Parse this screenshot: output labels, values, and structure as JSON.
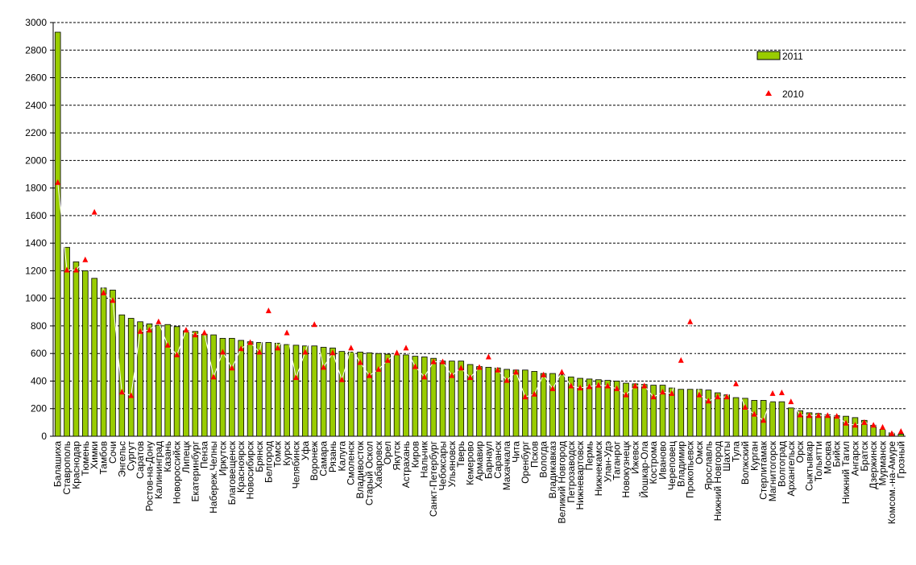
{
  "colors": {
    "bar_fill": "#99cc00",
    "bar_stroke": "#000000",
    "marker": "#ff0000",
    "line": "#ffffff",
    "grid": "#000000"
  },
  "chart_data": {
    "type": "bar",
    "title": "",
    "xlabel": "",
    "ylabel": "",
    "ylim": [
      0,
      3000
    ],
    "yticks": [
      0,
      200,
      400,
      600,
      800,
      1000,
      1200,
      1400,
      1600,
      1800,
      2000,
      2200,
      2400,
      2600,
      2800,
      3000
    ],
    "grid": "horizontal dashed",
    "legend_placement": "top-right",
    "categories": [
      "Балашиха",
      "Ставрополь",
      "Краснодар",
      "Тюмень",
      "Химки",
      "Тамбов",
      "Сочи",
      "Энгельс",
      "Сургут",
      "Саратов",
      "Ростов-на-Дону",
      "Калининград",
      "Казань",
      "Новороссийск",
      "Липецк",
      "Екатеринбург",
      "Пенза",
      "Набереж.Челны",
      "Иркутск",
      "Благовещенск",
      "Красноярск",
      "Новосибирск",
      "Брянск",
      "Белгород",
      "Томск",
      "Курск",
      "Челябинск",
      "Уфа",
      "Воронеж",
      "Самара",
      "Рязань",
      "Калуга",
      "Смоленск",
      "Владивосток",
      "Старый Оскол",
      "Хабаровск",
      "Орел",
      "Якутск",
      "Астрахань",
      "Киров",
      "Нальчик",
      "Санкт-Петербург",
      "Чебоксары",
      "Ульяновск",
      "Тверь",
      "Кемерово",
      "Армавир",
      "Барнаул",
      "Саранск",
      "Махачкала",
      "Чита",
      "Оренбург",
      "Псков",
      "Вологда",
      "Владикавказ",
      "Великий Новгород",
      "Петрозаводск",
      "Нижневартовск",
      "Пермь",
      "Нижнекамск",
      "Улан-Удэ",
      "Таганрог",
      "Новокузнецк",
      "Ижевск",
      "Йошкар-Ола",
      "Кострома",
      "Иваново",
      "Череповец",
      "Владимир",
      "Прокопьевск",
      "Омск",
      "Ярославль",
      "Нижний Новгород",
      "Шахты",
      "Тула",
      "Волжский",
      "Курган",
      "Стерлитамак",
      "Магнитогорск",
      "Волгоград",
      "Архангельск",
      "Орск",
      "Сыктывкар",
      "Тольятти",
      "Москва",
      "Бийск",
      "Нижний Тагил",
      "Ангарск",
      "Братск",
      "Дзержинск",
      "Мурманск",
      "Комсом.-на-Амуре",
      "Грозный"
    ],
    "series": [
      {
        "name": "2011",
        "type": "bar",
        "values": [
          2930,
          1370,
          1265,
          1200,
          1145,
          1075,
          1060,
          880,
          855,
          830,
          815,
          805,
          810,
          795,
          765,
          760,
          740,
          735,
          710,
          710,
          695,
          685,
          680,
          680,
          675,
          665,
          660,
          655,
          655,
          645,
          640,
          615,
          610,
          610,
          605,
          600,
          595,
          590,
          590,
          580,
          575,
          565,
          545,
          545,
          545,
          520,
          505,
          500,
          495,
          485,
          480,
          480,
          470,
          455,
          455,
          445,
          430,
          420,
          415,
          410,
          405,
          400,
          385,
          380,
          375,
          370,
          370,
          350,
          340,
          340,
          340,
          335,
          315,
          300,
          280,
          275,
          260,
          260,
          250,
          250,
          205,
          185,
          170,
          165,
          155,
          150,
          145,
          135,
          115,
          80,
          50,
          25,
          15
        ]
      },
      {
        "name": "2010",
        "type": "marker",
        "values": [
          1840,
          1205,
          1205,
          1280,
          1625,
          1040,
          985,
          320,
          295,
          760,
          770,
          830,
          660,
          590,
          770,
          735,
          750,
          430,
          610,
          495,
          635,
          680,
          610,
          910,
          640,
          750,
          425,
          610,
          810,
          500,
          605,
          410,
          640,
          535,
          440,
          485,
          550,
          605,
          640,
          505,
          430,
          540,
          540,
          440,
          495,
          425,
          500,
          575,
          480,
          405,
          465,
          285,
          305,
          445,
          345,
          465,
          365,
          350,
          360,
          370,
          365,
          345,
          300,
          365,
          365,
          285,
          320,
          310,
          550,
          830,
          300,
          255,
          285,
          285,
          380,
          210,
          160,
          115,
          310,
          315,
          250,
          155,
          150,
          150,
          150,
          145,
          95,
          80,
          100,
          80,
          65,
          20,
          35
        ]
      }
    ]
  }
}
